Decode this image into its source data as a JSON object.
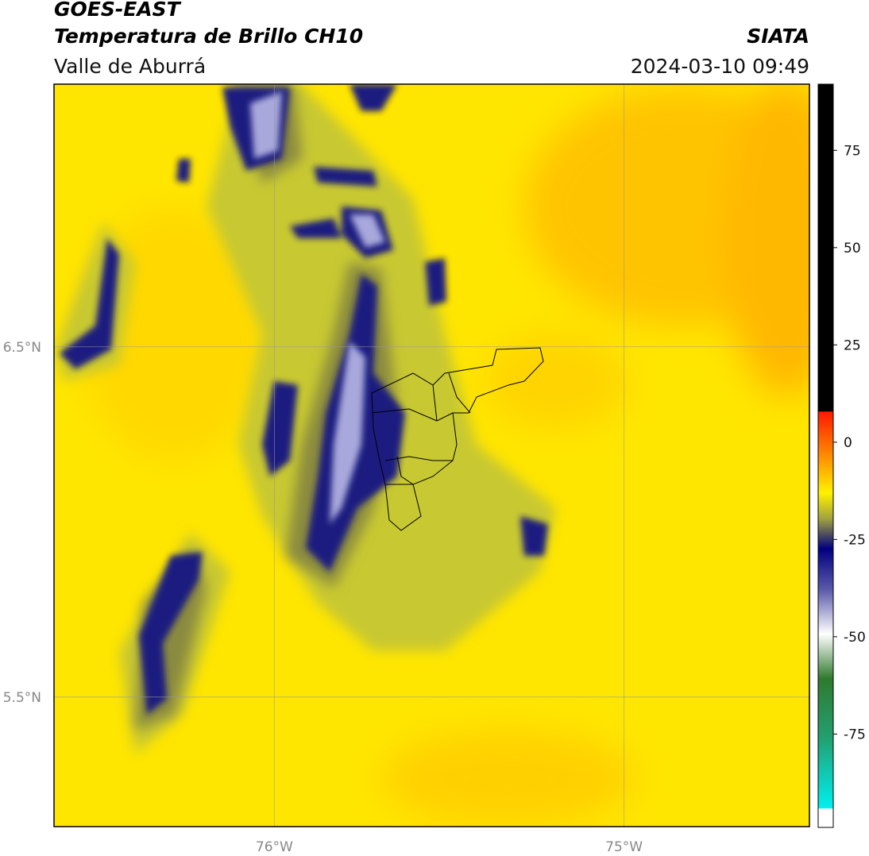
{
  "header": {
    "source": "GOES-EAST",
    "product": "Temperatura de Brillo CH10",
    "region": "Valle de Aburrá",
    "agency": "SIATA",
    "datetime": "2024-03-10 09:49"
  },
  "chart_data": {
    "type": "map",
    "xlim": [
      -76.63,
      -74.47
    ],
    "ylim": [
      5.13,
      7.25
    ],
    "xticks": [
      {
        "value": -76,
        "label": "76°W"
      },
      {
        "value": -75,
        "label": "75°W"
      }
    ],
    "yticks": [
      {
        "value": 6.5,
        "label": "6.5°N"
      },
      {
        "value": 5.5,
        "label": "5.5°N"
      }
    ],
    "grid": true,
    "colorbar": {
      "lim": [
        -99,
        92
      ],
      "ticks": [
        75,
        50,
        25,
        0,
        -25,
        -50,
        -75
      ]
    }
  }
}
